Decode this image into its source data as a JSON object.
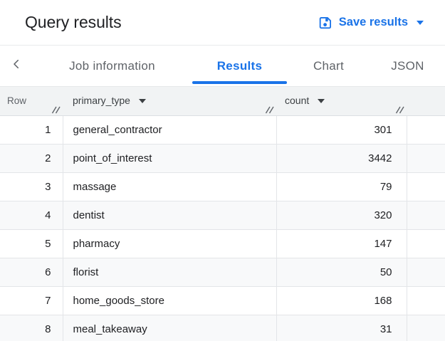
{
  "colors": {
    "accent_blue": "#1a73e8",
    "text_primary": "#202124",
    "text_secondary": "#5f6368",
    "table_header_bg": "#f1f3f4",
    "row_alt_bg": "#f8f9fa",
    "border": "#e3e5e8"
  },
  "header": {
    "title": "Query results",
    "save_button": {
      "icon": "save-icon",
      "label": "Save results",
      "caret_icon": "caret-down-icon"
    }
  },
  "tab_bar": {
    "back_icon": "chevron-left-icon",
    "tabs": [
      {
        "label": "Job information",
        "active": false
      },
      {
        "label": "Results",
        "active": true
      },
      {
        "label": "Chart",
        "active": false
      },
      {
        "label": "JSON",
        "active": false
      }
    ]
  },
  "table": {
    "columns": [
      {
        "label": "Row",
        "sortable": false
      },
      {
        "label": "primary_type",
        "sortable": true
      },
      {
        "label": "count",
        "sortable": true
      }
    ],
    "rows": [
      {
        "row": "1",
        "primary_type": "general_contractor",
        "count": "301"
      },
      {
        "row": "2",
        "primary_type": "point_of_interest",
        "count": "3442"
      },
      {
        "row": "3",
        "primary_type": "massage",
        "count": "79"
      },
      {
        "row": "4",
        "primary_type": "dentist",
        "count": "320"
      },
      {
        "row": "5",
        "primary_type": "pharmacy",
        "count": "147"
      },
      {
        "row": "6",
        "primary_type": "florist",
        "count": "50"
      },
      {
        "row": "7",
        "primary_type": "home_goods_store",
        "count": "168"
      },
      {
        "row": "8",
        "primary_type": "meal_takeaway",
        "count": "31"
      }
    ]
  }
}
